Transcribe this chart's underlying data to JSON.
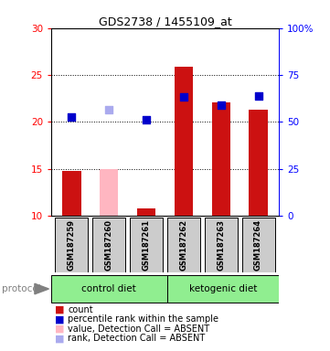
{
  "title": "GDS2738 / 1455109_at",
  "samples": [
    "GSM187259",
    "GSM187260",
    "GSM187261",
    "GSM187262",
    "GSM187263",
    "GSM187264"
  ],
  "count_values": [
    14.8,
    null,
    10.8,
    25.9,
    22.1,
    21.3
  ],
  "count_absent_values": [
    null,
    15.0,
    null,
    null,
    null,
    null
  ],
  "rank_values": [
    20.5,
    null,
    20.2,
    22.7,
    21.8,
    22.8
  ],
  "rank_absent_values": [
    null,
    21.3,
    null,
    null,
    null,
    null
  ],
  "ylim_left": [
    10,
    30
  ],
  "ylim_right": [
    0,
    100
  ],
  "yticks_left": [
    10,
    15,
    20,
    25,
    30
  ],
  "yticks_right": [
    0,
    25,
    50,
    75,
    100
  ],
  "ytick_labels_right": [
    "0",
    "25",
    "50",
    "75",
    "100%"
  ],
  "protocol_label": "protocol",
  "group_color": "#90EE90",
  "bar_color_present": "#CC1111",
  "bar_color_absent": "#FFB6C1",
  "rank_color_present": "#0000CC",
  "rank_color_absent": "#AAAAEE",
  "bar_width": 0.5,
  "background_color": "#ffffff",
  "sample_box_color": "#CCCCCC",
  "legend_items": [
    {
      "color": "#CC1111",
      "label": "count"
    },
    {
      "color": "#0000CC",
      "label": "percentile rank within the sample"
    },
    {
      "color": "#FFB6C1",
      "label": "value, Detection Call = ABSENT"
    },
    {
      "color": "#AAAAEE",
      "label": "rank, Detection Call = ABSENT"
    }
  ]
}
